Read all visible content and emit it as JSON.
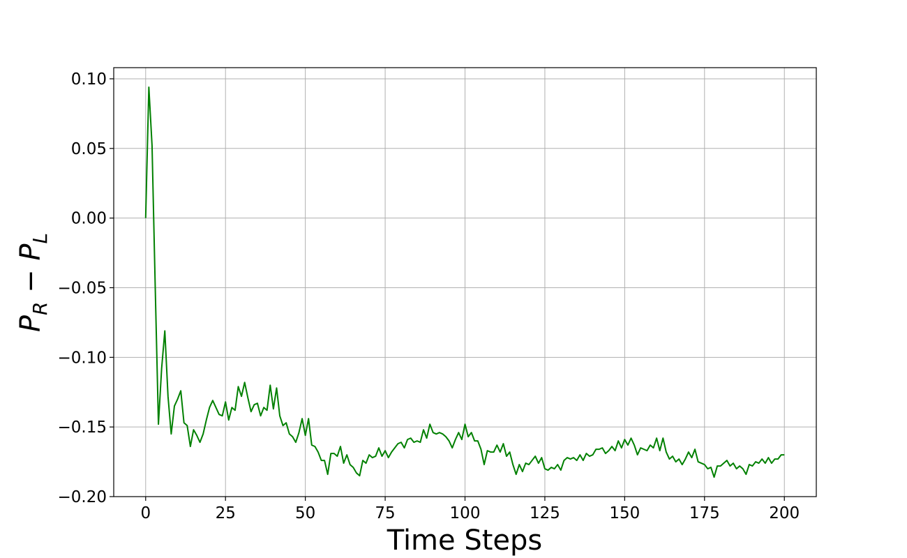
{
  "chart_data": {
    "type": "line",
    "title": "",
    "xlabel": "Time Steps",
    "ylabel": {
      "main": "P",
      "sub1": "R",
      "op": " − ",
      "main2": "P",
      "sub2": "L"
    },
    "xlim": [
      -10,
      210
    ],
    "ylim": [
      -0.2,
      0.108
    ],
    "x_ticks": [
      0,
      25,
      50,
      75,
      100,
      125,
      150,
      175,
      200
    ],
    "x_tick_labels": [
      "0",
      "25",
      "50",
      "75",
      "100",
      "125",
      "150",
      "175",
      "200"
    ],
    "y_ticks": [
      0.1,
      0.05,
      0.0,
      -0.05,
      -0.1,
      -0.15,
      -0.2
    ],
    "y_tick_labels": [
      "0.10",
      "0.05",
      "0.00",
      "−0.05",
      "−0.10",
      "−0.15",
      "−0.20"
    ],
    "grid": true,
    "series": [
      {
        "color": "#008000",
        "x_start": 0,
        "x_step": 1,
        "values": [
          0.0,
          0.094,
          0.052,
          -0.05,
          -0.148,
          -0.108,
          -0.081,
          -0.128,
          -0.155,
          -0.135,
          -0.13,
          -0.124,
          -0.147,
          -0.149,
          -0.164,
          -0.152,
          -0.156,
          -0.161,
          -0.155,
          -0.145,
          -0.136,
          -0.131,
          -0.136,
          -0.141,
          -0.142,
          -0.132,
          -0.145,
          -0.136,
          -0.138,
          -0.121,
          -0.128,
          -0.118,
          -0.129,
          -0.139,
          -0.134,
          -0.133,
          -0.142,
          -0.136,
          -0.138,
          -0.12,
          -0.137,
          -0.122,
          -0.142,
          -0.149,
          -0.147,
          -0.155,
          -0.157,
          -0.161,
          -0.154,
          -0.144,
          -0.156,
          -0.144,
          -0.163,
          -0.164,
          -0.168,
          -0.174,
          -0.174,
          -0.184,
          -0.169,
          -0.169,
          -0.171,
          -0.164,
          -0.176,
          -0.17,
          -0.177,
          -0.179,
          -0.183,
          -0.185,
          -0.174,
          -0.176,
          -0.17,
          -0.172,
          -0.171,
          -0.165,
          -0.171,
          -0.167,
          -0.172,
          -0.168,
          -0.165,
          -0.162,
          -0.161,
          -0.165,
          -0.159,
          -0.158,
          -0.161,
          -0.16,
          -0.161,
          -0.152,
          -0.158,
          -0.148,
          -0.154,
          -0.155,
          -0.154,
          -0.155,
          -0.157,
          -0.16,
          -0.165,
          -0.159,
          -0.154,
          -0.159,
          -0.148,
          -0.157,
          -0.154,
          -0.16,
          -0.16,
          -0.166,
          -0.177,
          -0.167,
          -0.168,
          -0.168,
          -0.163,
          -0.168,
          -0.162,
          -0.171,
          -0.168,
          -0.177,
          -0.184,
          -0.177,
          -0.182,
          -0.176,
          -0.177,
          -0.174,
          -0.171,
          -0.176,
          -0.172,
          -0.18,
          -0.181,
          -0.179,
          -0.18,
          -0.177,
          -0.181,
          -0.174,
          -0.172,
          -0.173,
          -0.172,
          -0.174,
          -0.17,
          -0.174,
          -0.169,
          -0.171,
          -0.17,
          -0.166,
          -0.166,
          -0.165,
          -0.169,
          -0.167,
          -0.164,
          -0.167,
          -0.16,
          -0.165,
          -0.159,
          -0.163,
          -0.158,
          -0.163,
          -0.17,
          -0.165,
          -0.166,
          -0.167,
          -0.163,
          -0.165,
          -0.158,
          -0.167,
          -0.158,
          -0.168,
          -0.173,
          -0.171,
          -0.175,
          -0.173,
          -0.177,
          -0.173,
          -0.168,
          -0.172,
          -0.166,
          -0.175,
          -0.176,
          -0.177,
          -0.18,
          -0.179,
          -0.186,
          -0.178,
          -0.178,
          -0.176,
          -0.174,
          -0.178,
          -0.176,
          -0.18,
          -0.178,
          -0.18,
          -0.184,
          -0.177,
          -0.178,
          -0.175,
          -0.176,
          -0.173,
          -0.176,
          -0.172,
          -0.176,
          -0.173,
          -0.173,
          -0.17,
          -0.17
        ]
      }
    ]
  }
}
